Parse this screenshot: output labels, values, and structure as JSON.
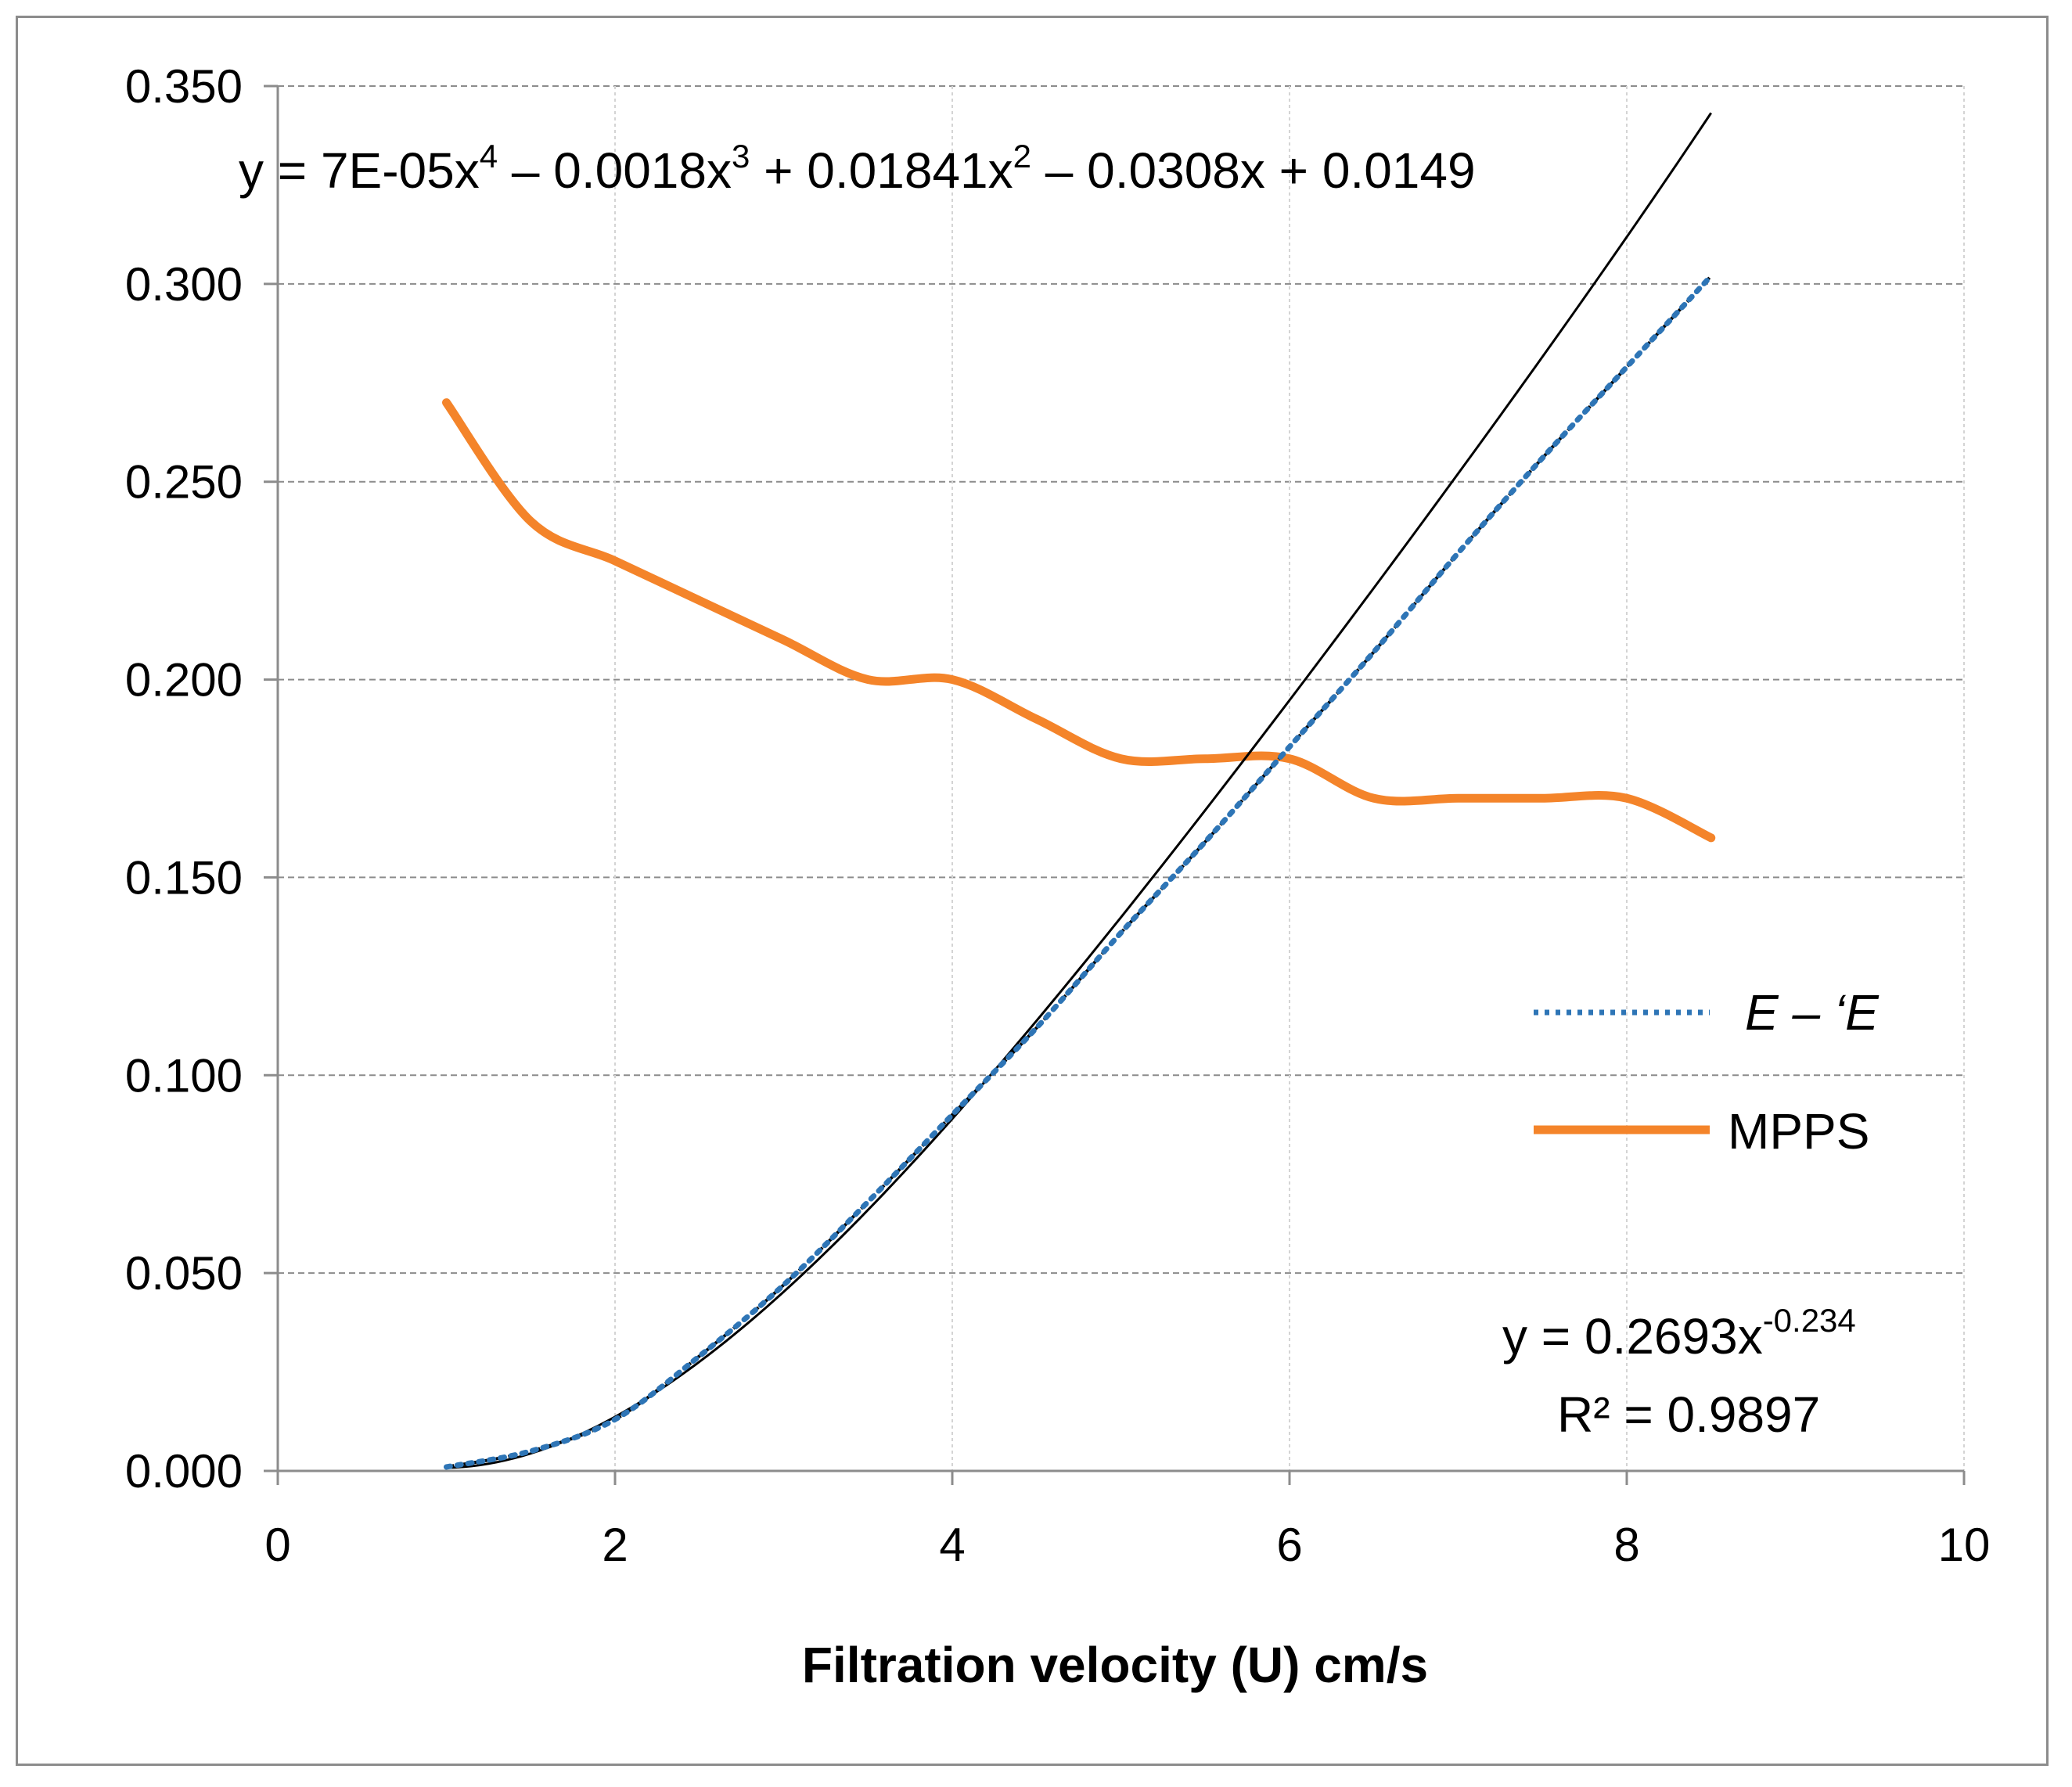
{
  "chart_data": {
    "type": "line",
    "title": "",
    "xlabel": "Filtration velocity (U) cm/s",
    "ylabel": "",
    "xlim": [
      0,
      10
    ],
    "ylim": [
      0,
      0.35
    ],
    "x_ticks": [
      "0",
      "2",
      "4",
      "6",
      "8",
      "10"
    ],
    "y_ticks": [
      "0.000",
      "0.050",
      "0.100",
      "0.150",
      "0.200",
      "0.250",
      "0.300",
      "0.350"
    ],
    "grid": true,
    "legend_position": "right-middle",
    "series": [
      {
        "name": "E – ‘E",
        "style": "dotted",
        "color": "#2e75b6",
        "x": [
          1,
          1.5,
          2,
          2.5,
          3,
          3.5,
          4,
          4.5,
          5,
          5.5,
          6,
          6.5,
          7,
          7.5,
          8,
          8.5
        ],
        "y": [
          0.001,
          0.005,
          0.013,
          0.029,
          0.047,
          0.068,
          0.09,
          0.112,
          0.136,
          0.159,
          0.183,
          0.207,
          0.232,
          0.256,
          0.279,
          0.302
        ]
      },
      {
        "name": "MPPS",
        "style": "solid",
        "color": "#f4842a",
        "x": [
          1,
          1.5,
          2,
          2.5,
          3,
          3.5,
          4,
          4.5,
          5,
          5.5,
          6,
          6.5,
          7,
          7.5,
          8,
          8.5
        ],
        "y": [
          0.27,
          0.24,
          0.23,
          0.22,
          0.21,
          0.2,
          0.2,
          0.19,
          0.18,
          0.18,
          0.18,
          0.17,
          0.17,
          0.17,
          0.17,
          0.16
        ]
      }
    ],
    "trendlines": [
      {
        "type": "polynomial",
        "color": "#000000",
        "x_range": [
          1,
          8.5
        ],
        "coefficients": [
          0.0149,
          -0.0308,
          0.01841,
          -0.0018,
          7e-05
        ],
        "equation": {
          "prefix": "y = 7E-05x",
          "sup1": "4",
          "part2": " – 0.0018x",
          "sup2": "3",
          "part3": " + 0.01841x",
          "sup3": "2",
          "part4": " – 0.0308x + 0.0149"
        }
      },
      {
        "type": "power",
        "color": "#000000",
        "x_range": [
          1,
          8.5
        ],
        "a": 0.2693,
        "b": -0.234,
        "equation": {
          "base": "y = 0.2693x",
          "exponent": "-0.234",
          "r_squared": "R² = 0.9897"
        }
      }
    ]
  }
}
